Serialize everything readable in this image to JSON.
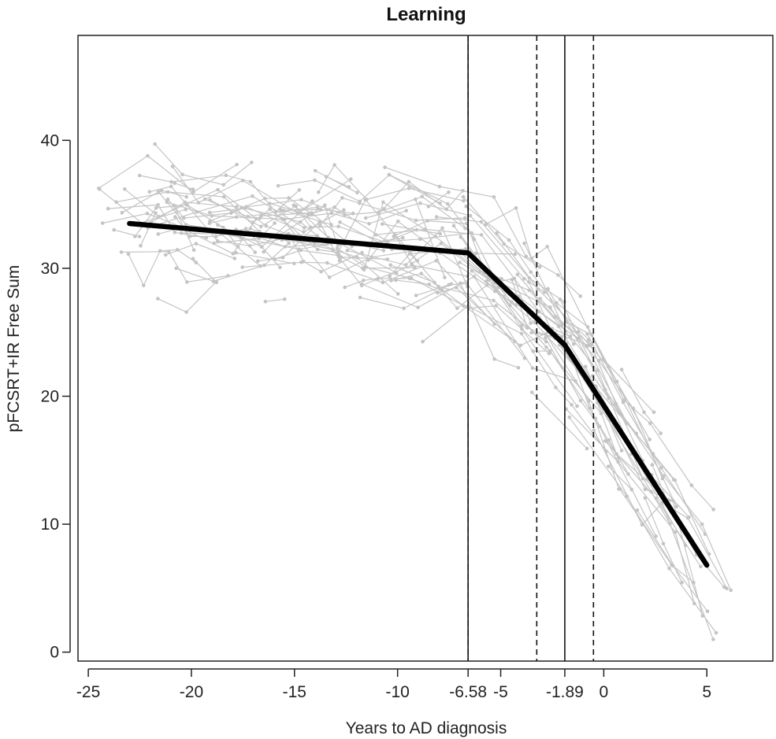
{
  "chart_data": {
    "type": "line",
    "title": "Learning",
    "xlabel": "Years to AD diagnosis",
    "ylabel": "pFCSRT+IR Free Sum",
    "xlim": [
      -25.5,
      8.2
    ],
    "ylim": [
      -0.7,
      48.2
    ],
    "x_ticks": [
      {
        "value": -25,
        "label": "-25"
      },
      {
        "value": -20,
        "label": "-20"
      },
      {
        "value": -15,
        "label": "-15"
      },
      {
        "value": -10,
        "label": "-10"
      },
      {
        "value": -6.58,
        "label": "-6.58"
      },
      {
        "value": -5,
        "label": "-5"
      },
      {
        "value": -1.89,
        "label": "-1.89"
      },
      {
        "value": 0,
        "label": "0"
      },
      {
        "value": 5,
        "label": "5"
      }
    ],
    "y_ticks": [
      {
        "value": 0,
        "label": "0"
      },
      {
        "value": 10,
        "label": "10"
      },
      {
        "value": 20,
        "label": "20"
      },
      {
        "value": 30,
        "label": "30"
      },
      {
        "value": 40,
        "label": "40"
      }
    ],
    "series": [
      {
        "role": "fitted-trajectory",
        "x": [
          -23,
          -6.58,
          -1.89,
          5
        ],
        "y": [
          33.5,
          31.2,
          24.0,
          6.8
        ]
      }
    ],
    "vertical_lines": [
      {
        "x": -6.58,
        "style": "solid"
      },
      {
        "x": -6.58,
        "style": "dashed"
      },
      {
        "x": -3.25,
        "style": "dashed"
      },
      {
        "x": -1.89,
        "style": "solid"
      },
      {
        "x": -0.5,
        "style": "dashed"
      }
    ],
    "individual_trajectories": {
      "count": 140,
      "color": "#c4c4c4",
      "point_style": "dot"
    },
    "grid": false,
    "colors": {
      "fit": "#000000",
      "individual": "#c4c4c4",
      "axis": "#222222"
    }
  }
}
